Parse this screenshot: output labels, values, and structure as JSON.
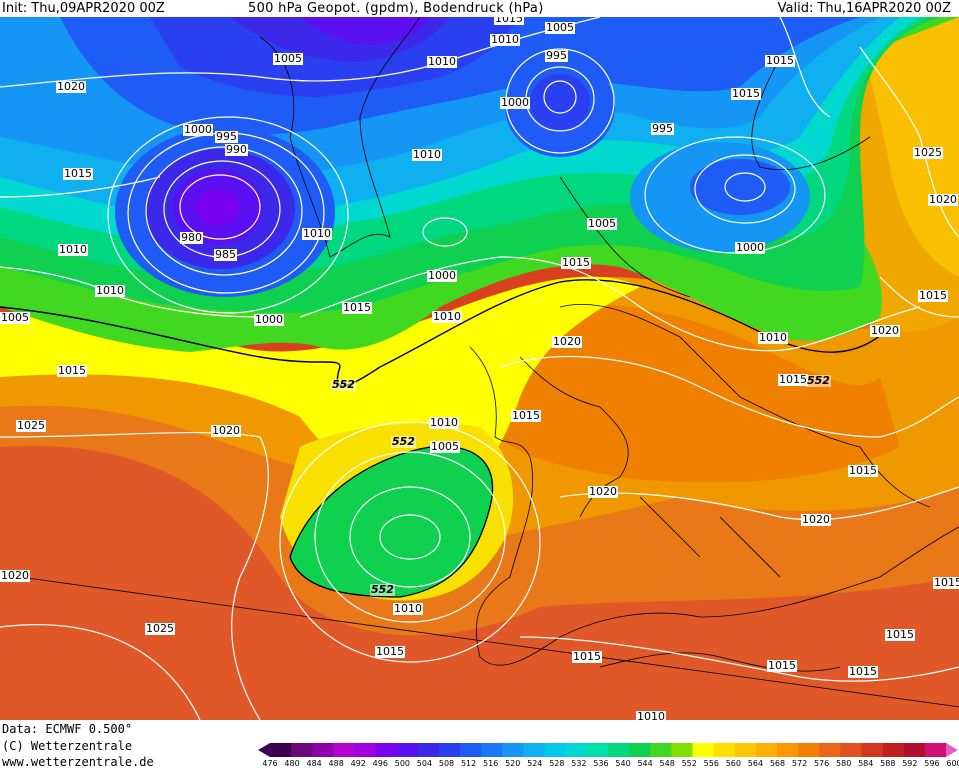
{
  "header": {
    "init": "Init: Thu,09APR2020 00Z",
    "title": "500 hPa Geopot. (gpdm), Bodendruck (hPa)",
    "valid": "Valid: Thu,16APR2020 00Z"
  },
  "footer": {
    "data": "Data: ECMWF  0.500°",
    "copyright": "(C) Wetterzentrale",
    "url": "www.wetterzentrale.de"
  },
  "isobar_labels": [
    "1015",
    "1010",
    "1005",
    "995",
    "1020",
    "1005",
    "1010",
    "1000",
    "1015",
    "1000",
    "995",
    "990",
    "1015",
    "1025",
    "1015",
    "1010",
    "980",
    "985",
    "1010",
    "1005",
    "1000",
    "1020",
    "1010",
    "995",
    "1015",
    "1010",
    "1000",
    "1000",
    "1015",
    "1010",
    "1005",
    "1015",
    "1020",
    "1010",
    "1015",
    "1015",
    "1020",
    "1010",
    "1005",
    "1015",
    "1025",
    "1020",
    "1020",
    "1015",
    "1020",
    "1015",
    "1020",
    "1025",
    "1010",
    "1015",
    "1015",
    "1015",
    "1015",
    "1015",
    "1010"
  ],
  "geopot_labels": [
    "552",
    "552",
    "552",
    "552"
  ],
  "legend": {
    "arrow_left": "476",
    "values": [
      "476",
      "480",
      "484",
      "488",
      "492",
      "496",
      "500",
      "504",
      "508",
      "512",
      "516",
      "520",
      "524",
      "528",
      "532",
      "536",
      "540",
      "544",
      "548",
      "552",
      "556",
      "560",
      "564",
      "568",
      "572",
      "576",
      "580",
      "584",
      "588",
      "592",
      "596",
      "600"
    ],
    "colors": [
      "#3d0050",
      "#6a0a7a",
      "#8b00a8",
      "#b400d0",
      "#a000e0",
      "#7a00f0",
      "#5a10f0",
      "#3c28e8",
      "#2a40f0",
      "#1e5cf5",
      "#1a78f8",
      "#1596f5",
      "#10b0f0",
      "#00c8e8",
      "#00d8d0",
      "#00e0a8",
      "#00d880",
      "#10d050",
      "#40d820",
      "#80e000",
      "#ffff00",
      "#ffe000",
      "#ffc800",
      "#ffb000",
      "#ff9800",
      "#f08000",
      "#e86818",
      "#e05020",
      "#d03820",
      "#c02020",
      "#b01030",
      "#d01070"
    ],
    "arrow_right_color": "#e060c0"
  },
  "regions": {
    "low_core": "#3a18d0",
    "north_lows": "#2050f0",
    "green_belt": "#30d040",
    "yellow": "#ffff00",
    "orange": "#f0a000",
    "red": "#d84020"
  }
}
